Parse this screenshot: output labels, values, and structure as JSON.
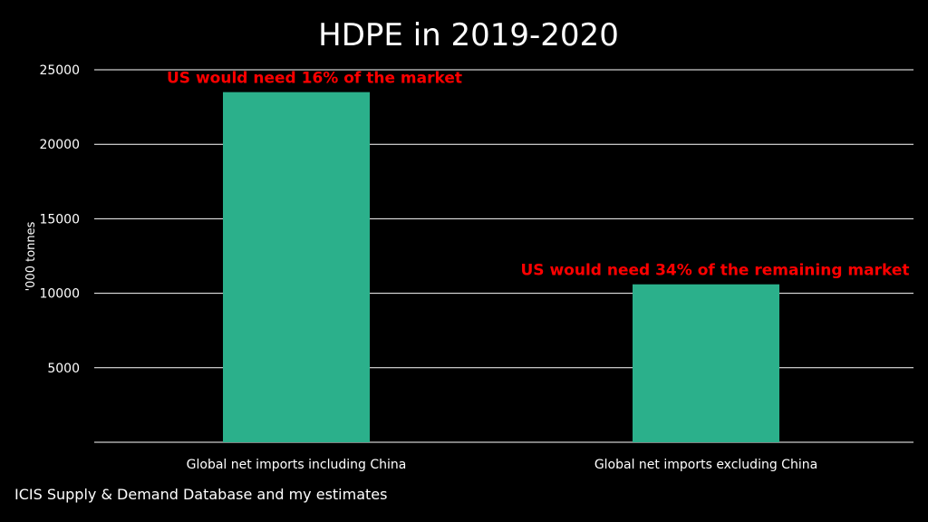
{
  "chart_data": {
    "type": "bar",
    "title": "HDPE in 2019-2020",
    "ylabel": "'000 tonnes",
    "xlabel": "",
    "categories": [
      "Global net imports including China",
      "Global net imports excluding China"
    ],
    "values": [
      23500,
      10600
    ],
    "ylim": [
      0,
      25000
    ],
    "yticks": [
      5000,
      10000,
      15000,
      20000,
      25000
    ],
    "grid": true,
    "legend": "none",
    "annotations": [
      {
        "category_index": 0,
        "text": "US would need 16% of the market"
      },
      {
        "category_index": 1,
        "text": "US would need 34% of the remaining market"
      }
    ],
    "colors": {
      "background": "#000000",
      "bar": "#2bb08b",
      "gridline": "#ffffff",
      "text": "#ffffff",
      "annotation": "#ff0000"
    }
  },
  "source": "ICIS Supply & Demand Database and my estimates"
}
